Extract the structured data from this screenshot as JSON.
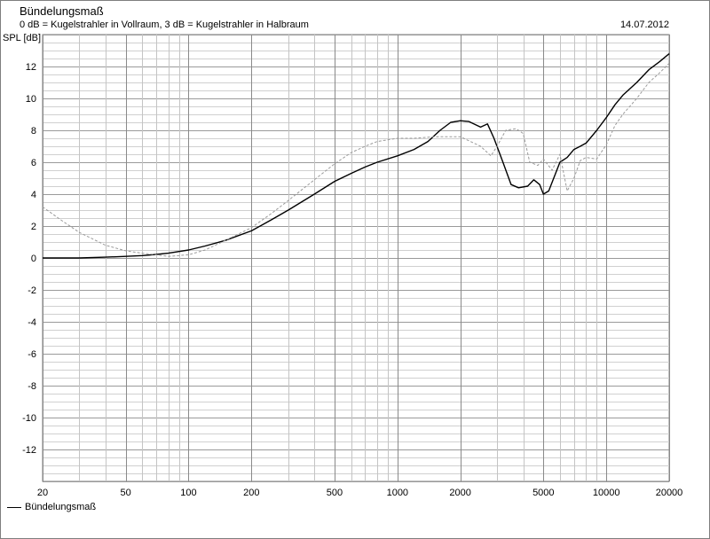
{
  "chart_data": {
    "type": "line",
    "title": "Bündelungsmaß",
    "subtitle": "0 dB = Kugelstrahler in Vollraum, 3 dB = Kugelstrahler in Halbraum",
    "date": "14.07.2012",
    "ylabel": "SPL [dB]",
    "xlabel": "",
    "x_scale": "log",
    "xlim": [
      20,
      20000
    ],
    "ylim": [
      -14,
      14
    ],
    "grid": true,
    "legend_position": "bottom-left",
    "x_ticks": [
      20,
      50,
      100,
      200,
      500,
      1000,
      2000,
      5000,
      10000,
      20000
    ],
    "x_tick_labels": [
      "20",
      "50",
      "100",
      "200",
      "500",
      "1000",
      "2000",
      "5000",
      "10000",
      "20000"
    ],
    "y_ticks": [
      12,
      10,
      8,
      6,
      4,
      2,
      0,
      -2,
      -4,
      -6,
      -8,
      -10,
      -12
    ],
    "y_tick_labels": [
      "12",
      "10",
      "8",
      "6",
      "4",
      "2",
      "0",
      "-2",
      "-4",
      "-6",
      "-8",
      "-10",
      "-12"
    ],
    "series": [
      {
        "name": "Bündelungsmaß",
        "style": "solid",
        "color": "#000000",
        "x": [
          20,
          30,
          40,
          50,
          60,
          70,
          80,
          100,
          120,
          150,
          200,
          250,
          300,
          400,
          500,
          600,
          700,
          800,
          1000,
          1200,
          1400,
          1600,
          1800,
          2000,
          2200,
          2500,
          2700,
          2900,
          3200,
          3500,
          3800,
          4200,
          4500,
          4800,
          5000,
          5300,
          5600,
          6000,
          6500,
          7000,
          7500,
          8000,
          9000,
          10000,
          11000,
          12000,
          14000,
          16000,
          18000,
          20000
        ],
        "y": [
          0.0,
          0.0,
          0.05,
          0.1,
          0.15,
          0.22,
          0.3,
          0.5,
          0.75,
          1.1,
          1.7,
          2.4,
          3.0,
          4.0,
          4.8,
          5.3,
          5.7,
          6.0,
          6.4,
          6.8,
          7.3,
          8.0,
          8.5,
          8.6,
          8.55,
          8.2,
          8.4,
          7.5,
          6.0,
          4.6,
          4.4,
          4.5,
          4.9,
          4.6,
          4.0,
          4.2,
          5.0,
          6.0,
          6.3,
          6.8,
          7.0,
          7.2,
          8.0,
          8.8,
          9.6,
          10.2,
          11.0,
          11.8,
          12.3,
          12.8
        ]
      },
      {
        "name": "",
        "style": "dashed",
        "color": "#9a9a9a",
        "x": [
          20,
          25,
          30,
          40,
          50,
          60,
          70,
          80,
          100,
          120,
          150,
          200,
          250,
          300,
          400,
          500,
          600,
          700,
          800,
          1000,
          1200,
          1500,
          2000,
          2500,
          2800,
          3000,
          3300,
          3700,
          4000,
          4300,
          4700,
          5000,
          5500,
          6000,
          6500,
          7000,
          7500,
          8000,
          9000,
          10000,
          11000,
          12000,
          14000,
          16000,
          18000,
          20000
        ],
        "y": [
          3.2,
          2.3,
          1.6,
          0.8,
          0.45,
          0.3,
          0.2,
          0.1,
          0.2,
          0.5,
          1.1,
          1.9,
          2.8,
          3.6,
          4.9,
          5.9,
          6.6,
          7.0,
          7.3,
          7.5,
          7.5,
          7.6,
          7.6,
          7.0,
          6.4,
          7.0,
          8.0,
          8.1,
          7.8,
          6.0,
          5.8,
          6.2,
          5.5,
          6.5,
          4.2,
          5.0,
          6.1,
          6.3,
          6.2,
          7.1,
          8.3,
          9.0,
          10.0,
          11.0,
          11.6,
          12.2
        ]
      }
    ]
  }
}
